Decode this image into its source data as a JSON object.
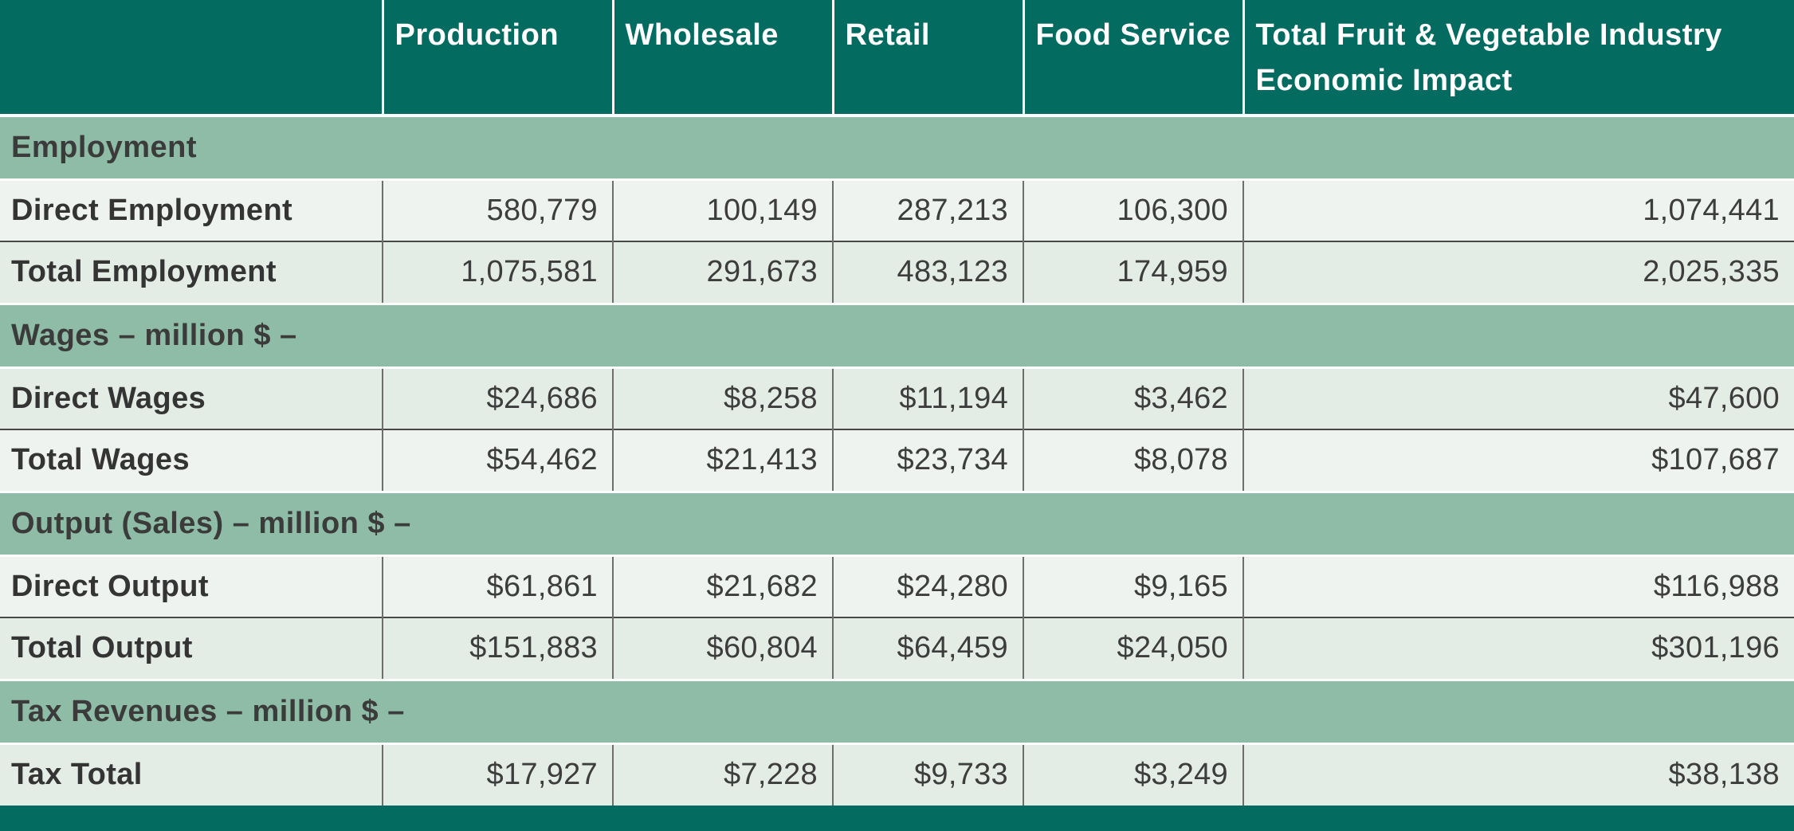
{
  "colors": {
    "header_background": "#046b61",
    "section_band": "#8ebca7",
    "row_light": "#eff3ef",
    "row_tint": "#e4ece6",
    "text": "#3b3b3b"
  },
  "chart_data": {
    "type": "table",
    "title": "Total Fruit & Vegetable Industry Economic Impact",
    "columns": [
      "",
      "Production",
      "Wholesale",
      "Retail",
      "Food Service",
      "Total Fruit & Vegetable Industry Economic Impact"
    ],
    "sections": [
      {
        "title": "Employment",
        "rows": [
          {
            "label": "Direct Employment",
            "values": [
              "580,779",
              "100,149",
              "287,213",
              "106,300",
              "1,074,441"
            ]
          },
          {
            "label": "Total Employment",
            "values": [
              "1,075,581",
              "291,673",
              "483,123",
              "174,959",
              "2,025,335"
            ]
          }
        ]
      },
      {
        "title": "Wages – million $ –",
        "rows": [
          {
            "label": "Direct Wages",
            "values": [
              "$24,686",
              "$8,258",
              "$11,194",
              "$3,462",
              "$47,600"
            ]
          },
          {
            "label": "Total Wages",
            "values": [
              "$54,462",
              "$21,413",
              "$23,734",
              "$8,078",
              "$107,687"
            ]
          }
        ]
      },
      {
        "title": "Output (Sales) – million $ –",
        "rows": [
          {
            "label": "Direct Output",
            "values": [
              "$61,861",
              "$21,682",
              "$24,280",
              "$9,165",
              "$116,988"
            ]
          },
          {
            "label": "Total Output",
            "values": [
              "$151,883",
              "$60,804",
              "$64,459",
              "$24,050",
              "$301,196"
            ]
          }
        ]
      },
      {
        "title": "Tax Revenues – million $ –",
        "rows": [
          {
            "label": "Tax Total",
            "values": [
              "$17,927",
              "$7,228",
              "$9,733",
              "$3,249",
              "$38,138"
            ]
          }
        ]
      }
    ]
  }
}
